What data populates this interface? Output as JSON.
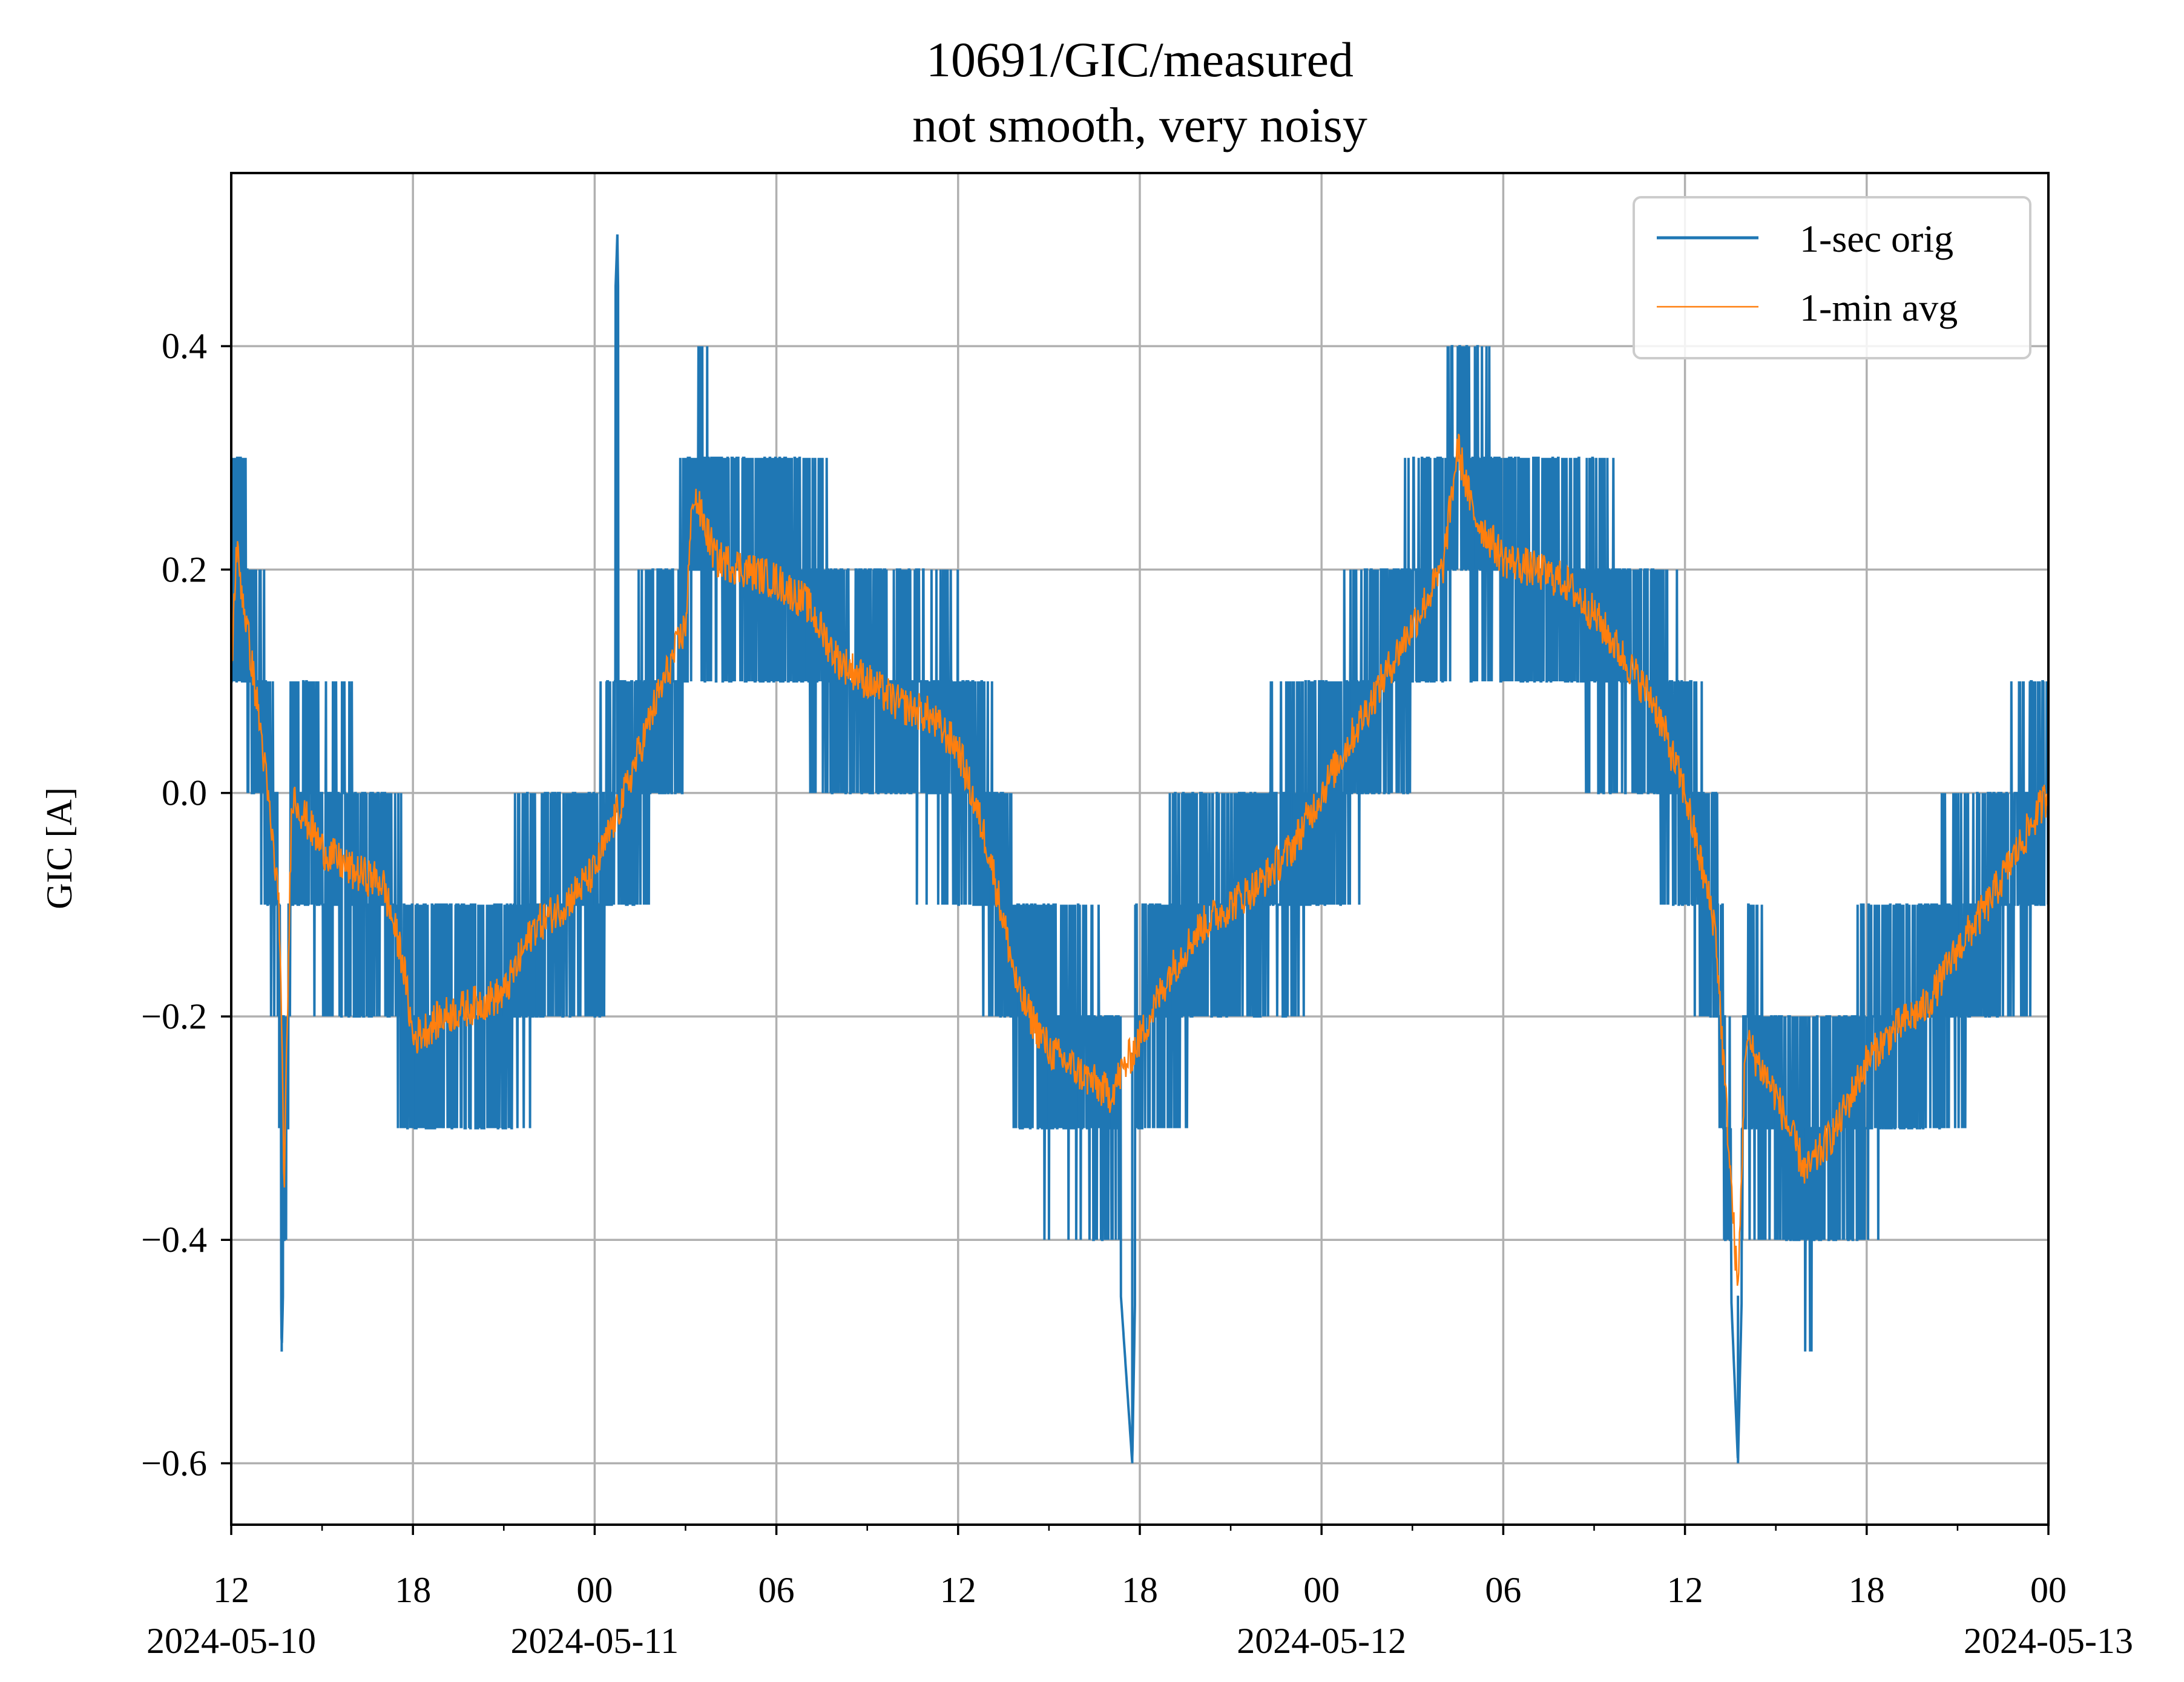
{
  "chart_data": {
    "type": "line",
    "title": "10691/GIC/measured",
    "subtitle": "not smooth, very noisy",
    "xlabel": "",
    "ylabel": "GIC [A]",
    "ylim": [
      -0.655,
      0.555
    ],
    "xlim": [
      "2024-05-10 12:00",
      "2024-05-13 00:00"
    ],
    "grid": true,
    "legend_position": "top-right",
    "x_ticks": [
      {
        "value": "2024-05-10 12:00",
        "label": "12",
        "date_label": "2024-05-10"
      },
      {
        "value": "2024-05-10 18:00",
        "label": "18",
        "date_label": ""
      },
      {
        "value": "2024-05-11 00:00",
        "label": "00",
        "date_label": "2024-05-11"
      },
      {
        "value": "2024-05-11 06:00",
        "label": "06",
        "date_label": ""
      },
      {
        "value": "2024-05-11 12:00",
        "label": "12",
        "date_label": ""
      },
      {
        "value": "2024-05-11 18:00",
        "label": "18",
        "date_label": ""
      },
      {
        "value": "2024-05-12 00:00",
        "label": "00",
        "date_label": "2024-05-12"
      },
      {
        "value": "2024-05-12 06:00",
        "label": "06",
        "date_label": ""
      },
      {
        "value": "2024-05-12 12:00",
        "label": "12",
        "date_label": ""
      },
      {
        "value": "2024-05-12 18:00",
        "label": "18",
        "date_label": ""
      },
      {
        "value": "2024-05-13 00:00",
        "label": "00",
        "date_label": "2024-05-13"
      }
    ],
    "y_ticks": [
      {
        "value": 0.4,
        "label": "0.4"
      },
      {
        "value": 0.2,
        "label": "0.2"
      },
      {
        "value": 0.0,
        "label": "0.0"
      },
      {
        "value": -0.2,
        "label": "−0.2"
      },
      {
        "value": -0.4,
        "label": "−0.4"
      },
      {
        "value": -0.6,
        "label": "−0.6"
      }
    ],
    "series": [
      {
        "name": "1-sec orig",
        "color": "#1f77b4",
        "style": "noisy quantized band (0.1 A steps) around the average",
        "x": [
          "2024-05-10 12:00",
          "2024-05-10 12:10",
          "2024-05-10 13:30",
          "2024-05-10 13:35",
          "2024-05-10 13:40",
          "2024-05-10 14:00",
          "2024-05-10 15:00",
          "2024-05-10 16:00",
          "2024-05-10 17:00",
          "2024-05-10 17:40",
          "2024-05-10 18:00",
          "2024-05-10 19:00",
          "2024-05-10 20:00",
          "2024-05-10 21:00",
          "2024-05-10 22:00",
          "2024-05-10 23:00",
          "2024-05-11 00:00",
          "2024-05-11 00:45",
          "2024-05-11 01:00",
          "2024-05-11 02:00",
          "2024-05-11 03:00",
          "2024-05-11 04:00",
          "2024-05-11 05:00",
          "2024-05-11 06:00",
          "2024-05-11 07:00",
          "2024-05-11 08:00",
          "2024-05-11 09:00",
          "2024-05-11 10:00",
          "2024-05-11 11:00",
          "2024-05-11 12:00",
          "2024-05-11 13:00",
          "2024-05-11 14:00",
          "2024-05-11 15:00",
          "2024-05-11 16:00",
          "2024-05-11 17:00",
          "2024-05-11 17:45",
          "2024-05-11 18:00",
          "2024-05-11 19:00",
          "2024-05-11 20:00",
          "2024-05-11 21:00",
          "2024-05-11 22:00",
          "2024-05-11 23:00",
          "2024-05-12 00:00",
          "2024-05-12 01:00",
          "2024-05-12 02:00",
          "2024-05-12 03:00",
          "2024-05-12 04:00",
          "2024-05-12 04:30",
          "2024-05-12 05:00",
          "2024-05-12 06:00",
          "2024-05-12 07:00",
          "2024-05-12 08:00",
          "2024-05-12 09:00",
          "2024-05-12 10:00",
          "2024-05-12 11:00",
          "2024-05-12 12:00",
          "2024-05-12 13:00",
          "2024-05-12 13:45",
          "2024-05-12 14:00",
          "2024-05-12 15:00",
          "2024-05-12 16:00",
          "2024-05-12 17:00",
          "2024-05-12 18:00",
          "2024-05-12 19:00",
          "2024-05-12 20:00",
          "2024-05-12 21:00",
          "2024-05-12 22:00",
          "2024-05-12 23:00",
          "2024-05-13 00:00"
        ],
        "y": [
          0.1,
          0.2,
          -0.1,
          -0.3,
          -0.5,
          -0.1,
          -0.1,
          -0.1,
          -0.1,
          -0.2,
          -0.3,
          -0.3,
          -0.2,
          -0.2,
          -0.2,
          -0.1,
          -0.1,
          0.5,
          0.0,
          0.1,
          0.2,
          0.2,
          0.2,
          0.2,
          0.1,
          0.1,
          0.1,
          0.1,
          0.1,
          0.0,
          -0.1,
          -0.2,
          -0.3,
          -0.3,
          -0.3,
          -0.6,
          -0.2,
          -0.2,
          -0.1,
          -0.1,
          -0.1,
          0.0,
          0.1,
          0.1,
          0.2,
          0.2,
          0.3,
          0.4,
          0.2,
          0.2,
          0.2,
          0.2,
          0.1,
          0.1,
          0.1,
          0.0,
          -0.1,
          -0.6,
          -0.3,
          -0.3,
          -0.3,
          -0.3,
          -0.2,
          -0.2,
          -0.2,
          -0.1,
          -0.1,
          0.0,
          0.0
        ]
      },
      {
        "name": "1-min avg",
        "color": "#ff7f0e",
        "x": [
          "2024-05-10 12:00",
          "2024-05-10 12:10",
          "2024-05-10 13:00",
          "2024-05-10 13:35",
          "2024-05-10 13:45",
          "2024-05-10 14:00",
          "2024-05-10 15:00",
          "2024-05-10 16:00",
          "2024-05-10 17:00",
          "2024-05-10 17:40",
          "2024-05-10 18:00",
          "2024-05-10 19:00",
          "2024-05-10 20:00",
          "2024-05-10 21:00",
          "2024-05-10 22:00",
          "2024-05-10 23:00",
          "2024-05-11 00:00",
          "2024-05-11 01:00",
          "2024-05-11 02:00",
          "2024-05-11 03:00",
          "2024-05-11 03:15",
          "2024-05-11 04:00",
          "2024-05-11 05:00",
          "2024-05-11 06:00",
          "2024-05-11 07:00",
          "2024-05-11 08:00",
          "2024-05-11 09:00",
          "2024-05-11 10:00",
          "2024-05-11 11:00",
          "2024-05-11 12:00",
          "2024-05-11 13:00",
          "2024-05-11 14:00",
          "2024-05-11 15:00",
          "2024-05-11 16:00",
          "2024-05-11 17:00",
          "2024-05-11 18:00",
          "2024-05-11 19:00",
          "2024-05-11 20:00",
          "2024-05-11 21:00",
          "2024-05-11 22:00",
          "2024-05-11 23:00",
          "2024-05-12 00:00",
          "2024-05-12 01:00",
          "2024-05-12 02:00",
          "2024-05-12 03:00",
          "2024-05-12 04:00",
          "2024-05-12 04:30",
          "2024-05-12 05:00",
          "2024-05-12 06:00",
          "2024-05-12 07:00",
          "2024-05-12 08:00",
          "2024-05-12 09:00",
          "2024-05-12 10:00",
          "2024-05-12 11:00",
          "2024-05-12 12:00",
          "2024-05-12 13:00",
          "2024-05-12 13:45",
          "2024-05-12 14:00",
          "2024-05-12 15:00",
          "2024-05-12 16:00",
          "2024-05-12 17:00",
          "2024-05-12 18:00",
          "2024-05-12 19:00",
          "2024-05-12 20:00",
          "2024-05-12 21:00",
          "2024-05-12 22:00",
          "2024-05-12 23:00",
          "2024-05-13 00:00"
        ],
        "y": [
          0.1,
          0.22,
          0.05,
          -0.1,
          -0.35,
          0.0,
          -0.05,
          -0.07,
          -0.08,
          -0.15,
          -0.22,
          -0.2,
          -0.19,
          -0.18,
          -0.12,
          -0.1,
          -0.07,
          0.0,
          0.08,
          0.15,
          0.27,
          0.21,
          0.2,
          0.19,
          0.17,
          0.12,
          0.1,
          0.08,
          0.07,
          0.04,
          -0.05,
          -0.18,
          -0.23,
          -0.25,
          -0.27,
          -0.22,
          -0.16,
          -0.12,
          -0.1,
          -0.08,
          -0.05,
          0.0,
          0.05,
          0.1,
          0.15,
          0.2,
          0.31,
          0.25,
          0.21,
          0.2,
          0.19,
          0.16,
          0.12,
          0.08,
          0.0,
          -0.12,
          -0.45,
          -0.22,
          -0.27,
          -0.34,
          -0.3,
          -0.24,
          -0.21,
          -0.19,
          -0.14,
          -0.1,
          -0.05,
          0.0
        ]
      }
    ]
  }
}
